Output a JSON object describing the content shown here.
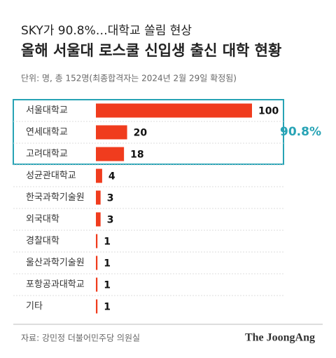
{
  "chart_data": {
    "type": "bar",
    "orientation": "horizontal",
    "subtitle": "SKY가 90.8%…대학교 쏠림 현상",
    "title": "올해 서울대 로스쿨 신입생 출신 대학 현황",
    "unit_note": "단위: 명, 총 152명(최종합격자는 2024년 2월 29일 확정됨)",
    "categories": [
      "서울대학교",
      "연세대학교",
      "고려대학교",
      "성균관대학교",
      "한국과학기술원",
      "외국대학",
      "경찰대학",
      "울산과학기술원",
      "포항공과대학교",
      "기타"
    ],
    "values": [
      100,
      20,
      18,
      4,
      3,
      3,
      1,
      1,
      1,
      1
    ],
    "color": "#f03c1e",
    "annotation": "90.8%",
    "source": "자료: 강민정 더불어민주당 의원실",
    "brand": "The JoongAng"
  }
}
